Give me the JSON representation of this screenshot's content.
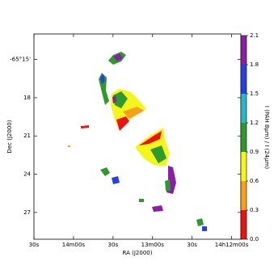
{
  "chart_data": {
    "type": "image",
    "xlabel": "RA (J2000)",
    "ylabel": "Dec (J2000)",
    "xlim": [
      51270,
      51113
    ],
    "xticks": [
      {
        "value": 51270,
        "label": "30s"
      },
      {
        "value": 51240,
        "label": "14m00s"
      },
      {
        "value": 51210,
        "label": "30s"
      },
      {
        "value": 51180,
        "label": "13m00s"
      },
      {
        "value": 51150,
        "label": "30s"
      },
      {
        "value": 51120,
        "label": "14h12m00s"
      }
    ],
    "ylim": [
      -3929.1,
      -3913
    ],
    "yticks": [
      {
        "value": -3915,
        "label": "-65°15'"
      },
      {
        "value": -3918,
        "label": "18"
      },
      {
        "value": -3921,
        "label": "21"
      },
      {
        "value": -3924,
        "label": "24"
      },
      {
        "value": -3927,
        "label": "27"
      }
    ],
    "colorbar": {
      "label": "I (PAH 8μm) / I (24μm)",
      "lim": [
        0,
        2.1
      ],
      "ticks": [
        {
          "value": 0,
          "label": "0.0"
        },
        0.3,
        0.6,
        0.9,
        1.2,
        1.5,
        1.8,
        2.1
      ],
      "colors": [
        "#ee1111",
        "#f7a11a",
        "#f5f51e",
        "#2e9a2e",
        "#2ab7c4",
        "#2a3fe0",
        "#8a1fa6"
      ]
    }
  }
}
